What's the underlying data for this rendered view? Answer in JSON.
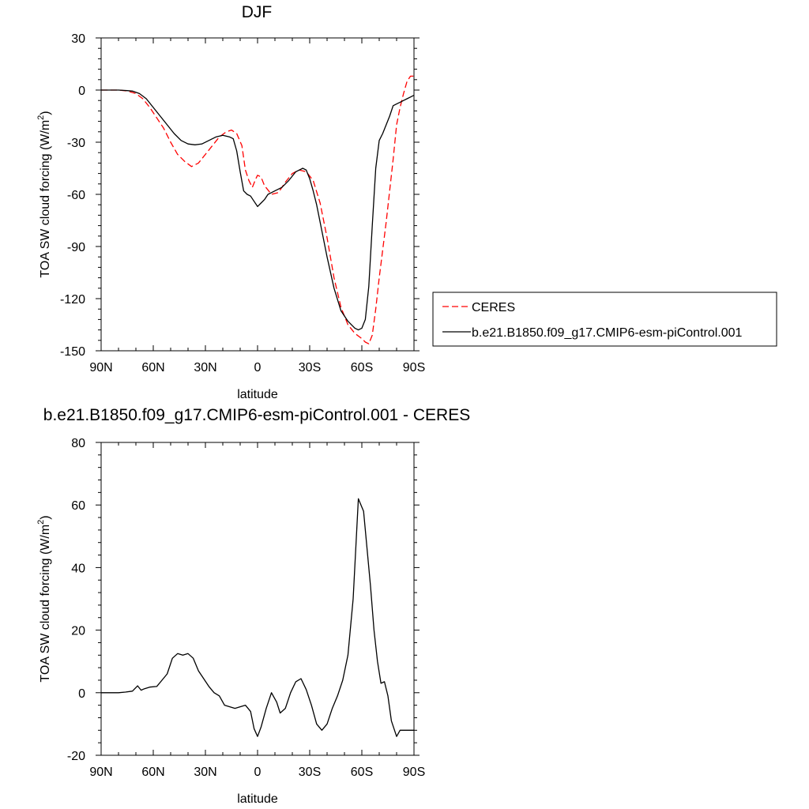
{
  "figure": {
    "top_title": "DJF",
    "bottom_title": "b.e21.B1850.f09_g17.CMIP6-esm-piControl.001 - CERES"
  },
  "chart_data": [
    {
      "type": "line",
      "title": "DJF",
      "xlabel": "latitude",
      "ylabel_prefix": "TOA SW cloud forcing (W/m",
      "ylabel_sup": "2",
      "ylabel_suffix": ")",
      "xlim": [
        90,
        -90
      ],
      "ylim": [
        -150,
        30
      ],
      "x_ticks": [
        {
          "value": 90,
          "label": "90N"
        },
        {
          "value": 60,
          "label": "60N"
        },
        {
          "value": 30,
          "label": "30N"
        },
        {
          "value": 0,
          "label": "0"
        },
        {
          "value": -30,
          "label": "30S"
        },
        {
          "value": -60,
          "label": "60S"
        },
        {
          "value": -90,
          "label": "90S"
        }
      ],
      "y_ticks": [
        30,
        0,
        -30,
        -60,
        -90,
        -120,
        -150
      ],
      "legend_position": "right",
      "series": [
        {
          "name": "CERES",
          "color": "#ff0000",
          "style": "dashed",
          "x": [
            90,
            80,
            75,
            70,
            66,
            62,
            58,
            54,
            50,
            46,
            42,
            38,
            34,
            30,
            26,
            22,
            18,
            15,
            12,
            9,
            7,
            5,
            3,
            1,
            0,
            -2,
            -4,
            -8,
            -12,
            -16,
            -20,
            -24,
            -28,
            -32,
            -36,
            -40,
            -44,
            -48,
            -52,
            -56,
            -60,
            -62,
            -64,
            -66,
            -68,
            -70,
            -74,
            -78,
            -80,
            -82,
            -84,
            -86,
            -88,
            -90
          ],
          "y": [
            0,
            0,
            -0.5,
            -2,
            -5,
            -10,
            -16,
            -22,
            -30,
            -37,
            -41,
            -44,
            -42,
            -37,
            -32,
            -27,
            -24,
            -23,
            -25,
            -32,
            -46,
            -52,
            -56,
            -51,
            -49,
            -50,
            -55,
            -60,
            -59,
            -53,
            -48,
            -46,
            -47,
            -52,
            -65,
            -85,
            -108,
            -125,
            -135,
            -140,
            -143,
            -145,
            -146,
            -141,
            -126,
            -108,
            -76,
            -40,
            -20,
            -10,
            -2,
            5,
            8,
            8
          ]
        },
        {
          "name": "b.e21.B1850.f09_g17.CMIP6-esm-piControl.001",
          "color": "#000000",
          "style": "solid",
          "x": [
            90,
            80,
            75,
            72,
            68,
            64,
            60,
            56,
            52,
            48,
            44,
            40,
            36,
            32,
            28,
            24,
            20,
            16,
            14,
            12,
            10,
            8,
            6,
            4,
            2,
            0,
            -2,
            -4,
            -6,
            -8,
            -10,
            -14,
            -18,
            -22,
            -26,
            -28,
            -30,
            -32,
            -34,
            -36,
            -40,
            -44,
            -48,
            -52,
            -56,
            -58,
            -60,
            -62,
            -64,
            -66,
            -68,
            -70,
            -72,
            -74,
            -76,
            -78,
            -80,
            -82,
            -84,
            -86,
            -88,
            -90
          ],
          "y": [
            0,
            0,
            -0.3,
            -0.6,
            -2,
            -5,
            -10,
            -15,
            -20,
            -25,
            -29,
            -31,
            -31.5,
            -31,
            -29,
            -27,
            -26,
            -27,
            -28,
            -35,
            -47,
            -58,
            -60,
            -61,
            -64,
            -67,
            -65,
            -63,
            -60,
            -59,
            -58,
            -56,
            -52,
            -47,
            -45,
            -46,
            -51,
            -58,
            -66,
            -76,
            -96,
            -114,
            -127,
            -133,
            -137,
            -138,
            -137,
            -132,
            -113,
            -78,
            -45,
            -29,
            -25,
            -20,
            -15,
            -9,
            -8,
            -7,
            -6,
            -5,
            -4,
            -3
          ]
        }
      ]
    },
    {
      "type": "line",
      "title": "b.e21.B1850.f09_g17.CMIP6-esm-piControl.001 - CERES",
      "xlabel": "latitude",
      "ylabel_prefix": "TOA SW cloud forcing (W/m",
      "ylabel_sup": "2",
      "ylabel_suffix": ")",
      "xlim": [
        90,
        -90
      ],
      "ylim": [
        -20,
        80
      ],
      "x_ticks": [
        {
          "value": 90,
          "label": "90N"
        },
        {
          "value": 60,
          "label": "60N"
        },
        {
          "value": 30,
          "label": "30N"
        },
        {
          "value": 0,
          "label": "0"
        },
        {
          "value": -30,
          "label": "30S"
        },
        {
          "value": -60,
          "label": "60S"
        },
        {
          "value": -90,
          "label": "90S"
        }
      ],
      "y_ticks": [
        80,
        60,
        40,
        20,
        0,
        -20
      ],
      "series": [
        {
          "color": "#000000",
          "style": "solid",
          "x": [
            90,
            80,
            76,
            72,
            69,
            67,
            65,
            62,
            58,
            55,
            52,
            49,
            46,
            43,
            40,
            37,
            34,
            31,
            28,
            25,
            22,
            19,
            16,
            13,
            10,
            7,
            4,
            2,
            0,
            -2,
            -5,
            -8,
            -11,
            -13,
            -16,
            -19,
            -22,
            -25,
            -28,
            -31,
            -34,
            -37,
            -40,
            -43,
            -46,
            -49,
            -52,
            -55,
            -58,
            -61,
            -63,
            -65,
            -67,
            -69,
            -71,
            -73,
            -75,
            -77,
            -80,
            -82,
            -84,
            -86,
            -88,
            -90
          ],
          "y": [
            0,
            0,
            0.2,
            0.5,
            2.2,
            0.8,
            1.3,
            1.8,
            2,
            4,
            6,
            11,
            12.5,
            12,
            12.5,
            11,
            7,
            4.5,
            2,
            0,
            -1,
            -4,
            -4.5,
            -5,
            -4.5,
            -4,
            -6,
            -11.5,
            -14,
            -11,
            -5,
            0,
            -3,
            -6.5,
            -5,
            0,
            3.5,
            4.5,
            1,
            -4,
            -10,
            -12,
            -10,
            -5,
            -1,
            4,
            12,
            30,
            62,
            58,
            46,
            34,
            20,
            10,
            3,
            3.5,
            -1,
            -9,
            -14,
            -12,
            -12,
            -12,
            -12,
            -12
          ]
        }
      ]
    }
  ]
}
